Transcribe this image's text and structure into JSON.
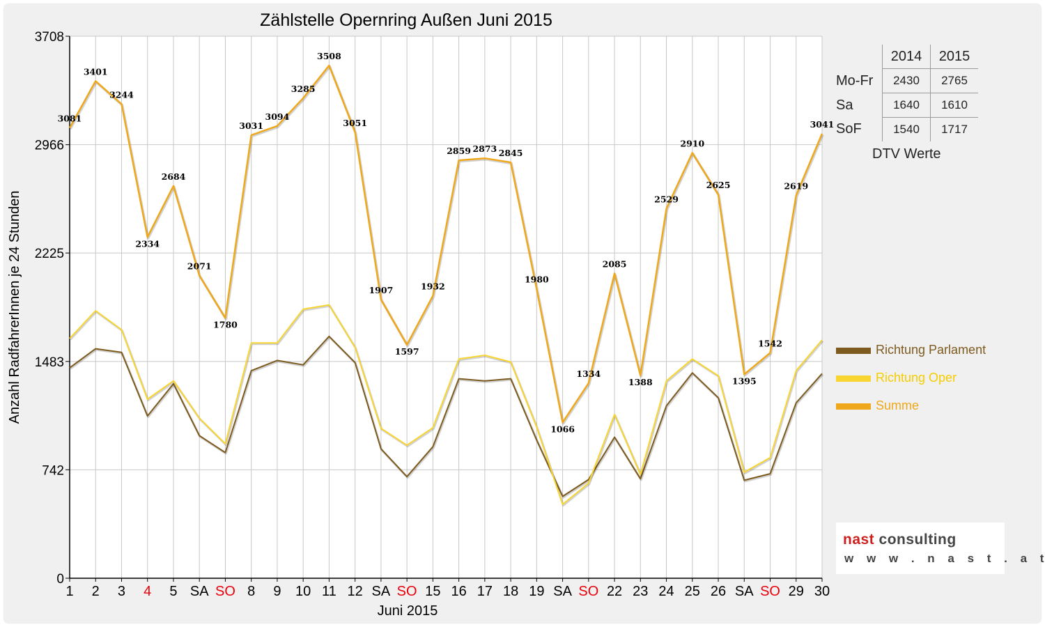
{
  "chart_data": {
    "type": "line",
    "title": "Zählstelle Opernring Außen Juni 2015",
    "xlabel": "Juni 2015",
    "ylabel": "Anzahl RadfahrerInnen je 24 Stunden",
    "ylim": [
      0,
      3708
    ],
    "yticks": [
      0,
      742,
      1483,
      2225,
      2966,
      3708
    ],
    "categories": [
      "1",
      "2",
      "3",
      "4",
      "5",
      "SA",
      "SO",
      "8",
      "9",
      "10",
      "11",
      "12",
      "SA",
      "SO",
      "15",
      "16",
      "17",
      "18",
      "19",
      "SA",
      "SO",
      "22",
      "23",
      "24",
      "25",
      "26",
      "SA",
      "SO",
      "29",
      "30"
    ],
    "highlight_categories": [
      3,
      6,
      13,
      20,
      27
    ],
    "highlight_color": "#e8000b",
    "grid": true,
    "legend_position": "right",
    "series": [
      {
        "name": "Richtung Parlament",
        "color": "#7d5a1e",
        "values": [
          1440,
          1570,
          1545,
          1110,
          1330,
          975,
          860,
          1420,
          1490,
          1460,
          1655,
          1475,
          885,
          695,
          900,
          1365,
          1350,
          1365,
          945,
          560,
          675,
          965,
          680,
          1180,
          1405,
          1235,
          670,
          715,
          1200,
          1400
        ]
      },
      {
        "name": "Richtung Oper",
        "color": "#f8d530",
        "values": [
          1640,
          1830,
          1700,
          1225,
          1350,
          1095,
          920,
          1610,
          1610,
          1840,
          1870,
          1580,
          1025,
          910,
          1030,
          1500,
          1525,
          1480,
          1035,
          505,
          650,
          1120,
          710,
          1350,
          1500,
          1385,
          725,
          825,
          1420,
          1630
        ]
      },
      {
        "name": "Summe",
        "color": "#efa81c",
        "values": [
          3081,
          3401,
          3244,
          2334,
          2684,
          2071,
          1780,
          3031,
          3094,
          3285,
          3508,
          3051,
          1907,
          1597,
          1932,
          2859,
          2873,
          2845,
          1980,
          1066,
          1334,
          2085,
          1388,
          2529,
          2910,
          2625,
          1395,
          1542,
          2619,
          3041
        ]
      }
    ]
  },
  "dtv_table": {
    "caption": "DTV Werte",
    "columns": [
      "2014",
      "2015"
    ],
    "rows": [
      {
        "label": "Mo-Fr",
        "v2014": "2430",
        "v2015": "2765"
      },
      {
        "label": "Sa",
        "v2014": "1640",
        "v2015": "1610"
      },
      {
        "label": "SoF",
        "v2014": "1540",
        "v2015": "1717"
      }
    ]
  },
  "logo": {
    "brand_red": "nast",
    "brand_rest": "consulting",
    "url": "w w w . n a s t . a t"
  }
}
